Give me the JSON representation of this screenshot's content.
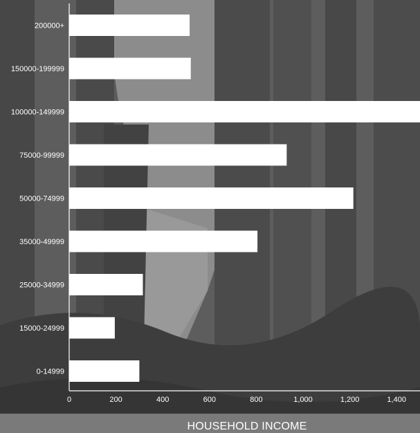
{
  "chart_data": {
    "type": "bar",
    "orientation": "horizontal",
    "xlabel": "HOUSEHOLD INCOME",
    "ylabel": "",
    "title": "",
    "categories": [
      "200000+",
      "150000-199999",
      "100000-149999",
      "75000-99999",
      "50000-74999",
      "35000-49999",
      "25000-34999",
      "15000-24999",
      "0-14999"
    ],
    "values": [
      515,
      520,
      1500,
      930,
      1215,
      805,
      315,
      195,
      300
    ],
    "xlim": [
      0,
      1500
    ],
    "x_ticks": [
      0,
      200,
      400,
      600,
      800,
      1000,
      1200,
      1400
    ],
    "x_tick_labels": [
      "0",
      "200",
      "400",
      "600",
      "800",
      "1,000",
      "1,200",
      "1,400"
    ],
    "grid": false,
    "legend": "none",
    "bar_color": "#ffffff",
    "text_color": "#ffffff"
  }
}
